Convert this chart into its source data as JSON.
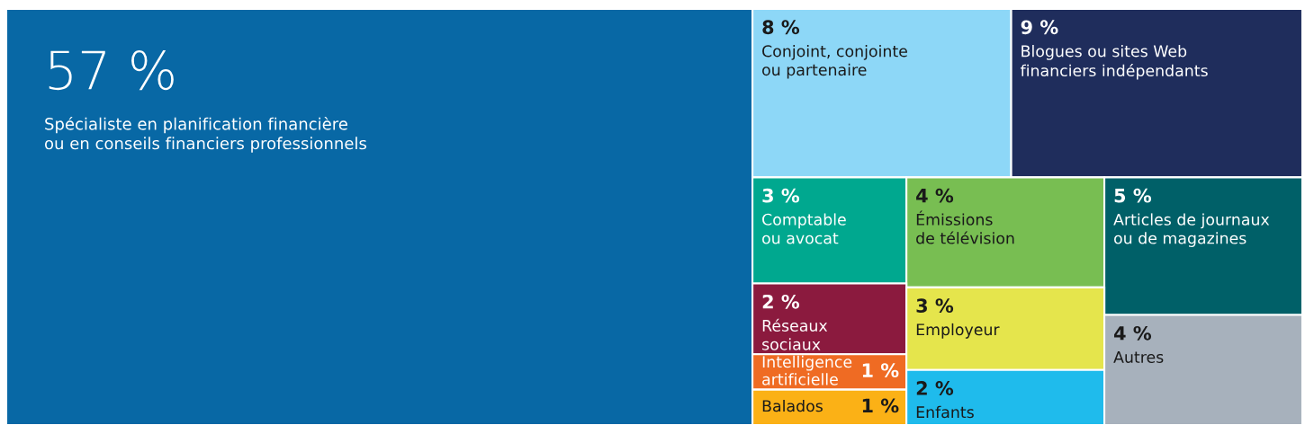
{
  "chart_data": {
    "type": "other",
    "categories": [
      "Spécialiste en planification financière\nou en conseils financiers professionnels",
      "Conjoint, conjointe\nou partenaire",
      "Blogues ou sites Web\nfinanciers indépendants",
      "Comptable\nou avocat",
      "Émissions\nde télévision",
      "Articles de journaux\nou de magazines",
      "Réseaux\nsociaux",
      "Intelligence\nartificielle",
      "Balados",
      "Employeur",
      "Enfants",
      "Autres"
    ],
    "values": [
      57,
      8,
      9,
      3,
      4,
      5,
      2,
      1,
      1,
      3,
      2,
      4
    ],
    "value_labels": [
      "57 %",
      "8 %",
      "9 %",
      "3 %",
      "4 %",
      "5 %",
      "2 %",
      "1 %",
      "1 %",
      "3 %",
      "2 %",
      "4 %"
    ],
    "colors": [
      "#0868a5",
      "#8dd7f7",
      "#1f2d5c",
      "#00a88f",
      "#78be52",
      "#006068",
      "#8b1a3e",
      "#ef6b23",
      "#fbb116",
      "#e5e54c",
      "#1fbbec",
      "#a7b1bc"
    ]
  }
}
